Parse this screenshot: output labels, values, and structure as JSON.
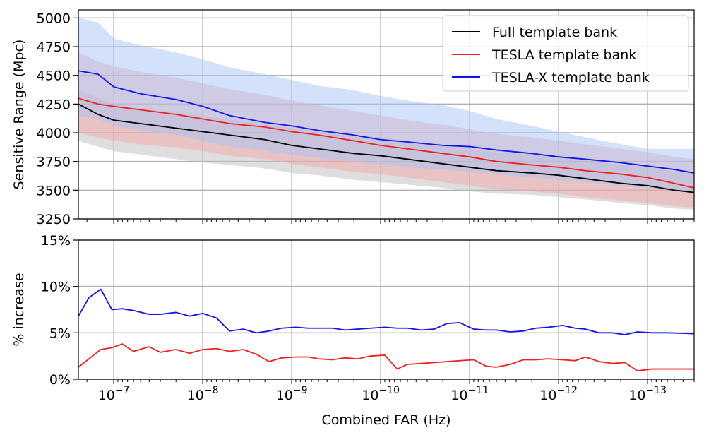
{
  "chart_data": [
    {
      "type": "line",
      "panel": "top",
      "title": "",
      "xlabel": "",
      "ylabel": "Sensitive Range (Mpc)",
      "xscale": "log-reversed",
      "xlim": [
        2.5e-07,
        3e-14
      ],
      "ylim": [
        3250,
        5070
      ],
      "yticks": [
        3250,
        3500,
        3750,
        4000,
        4250,
        4500,
        4750,
        5000
      ],
      "grid": true,
      "legend": "top-right",
      "x": [
        2.5e-07,
        1.5e-07,
        1e-07,
        5e-08,
        2e-08,
        1e-08,
        5e-09,
        2e-09,
        1e-09,
        5e-10,
        2e-10,
        1e-10,
        5e-11,
        2e-11,
        1e-11,
        5e-12,
        2e-12,
        1e-12,
        5e-13,
        2e-13,
        1e-13,
        5e-14,
        3e-14
      ],
      "series": [
        {
          "name": "Full template bank",
          "color": "#000000",
          "values": [
            4250,
            4160,
            4110,
            4080,
            4040,
            4010,
            3980,
            3940,
            3890,
            3860,
            3820,
            3800,
            3770,
            3730,
            3700,
            3670,
            3650,
            3630,
            3600,
            3560,
            3540,
            3500,
            3480
          ],
          "band_low": [
            3930,
            3880,
            3840,
            3810,
            3770,
            3740,
            3720,
            3690,
            3650,
            3630,
            3590,
            3570,
            3550,
            3520,
            3490,
            3470,
            3460,
            3440,
            3420,
            3390,
            3370,
            3340,
            3330
          ],
          "band_high": [
            4380,
            4300,
            4250,
            4210,
            4180,
            4150,
            4120,
            4080,
            4040,
            4010,
            3980,
            3960,
            3930,
            3890,
            3860,
            3830,
            3810,
            3790,
            3760,
            3720,
            3700,
            3660,
            3650
          ],
          "band_color": "#bdbdbd"
        },
        {
          "name": "TESLA template bank",
          "color": "#ee2020",
          "values": [
            4300,
            4250,
            4230,
            4200,
            4160,
            4120,
            4080,
            4050,
            4010,
            3980,
            3930,
            3890,
            3860,
            3820,
            3790,
            3750,
            3720,
            3700,
            3670,
            3640,
            3610,
            3560,
            3520
          ],
          "band_low": [
            4000,
            3960,
            3930,
            3900,
            3870,
            3840,
            3800,
            3770,
            3730,
            3700,
            3660,
            3640,
            3610,
            3570,
            3540,
            3510,
            3490,
            3470,
            3440,
            3410,
            3390,
            3360,
            3350
          ],
          "band_high": [
            4700,
            4620,
            4580,
            4530,
            4480,
            4430,
            4380,
            4330,
            4280,
            4240,
            4190,
            4150,
            4110,
            4070,
            4030,
            3990,
            3960,
            3930,
            3900,
            3860,
            3830,
            3790,
            3770
          ],
          "band_color": "#f3a7a7"
        },
        {
          "name": "TESLA-X template bank",
          "color": "#1414e6",
          "values": [
            4540,
            4510,
            4400,
            4340,
            4290,
            4230,
            4150,
            4090,
            4060,
            4020,
            3980,
            3940,
            3920,
            3890,
            3880,
            3850,
            3820,
            3790,
            3770,
            3740,
            3710,
            3680,
            3650
          ],
          "band_low": [
            4150,
            4120,
            4060,
            4020,
            3980,
            3930,
            3880,
            3840,
            3810,
            3780,
            3750,
            3720,
            3700,
            3680,
            3660,
            3640,
            3610,
            3590,
            3570,
            3540,
            3520,
            3500,
            3490
          ],
          "band_high": [
            5000,
            4960,
            4820,
            4760,
            4700,
            4640,
            4570,
            4510,
            4460,
            4410,
            4370,
            4320,
            4280,
            4240,
            4190,
            4120,
            4060,
            4010,
            3960,
            3900,
            3860,
            3860,
            3860
          ],
          "band_color": "#a8c4f5"
        }
      ]
    },
    {
      "type": "line",
      "panel": "bottom",
      "title": "",
      "xlabel": "Combined FAR (Hz)",
      "ylabel": "% increase",
      "xscale": "log-reversed",
      "xlim": [
        2.5e-07,
        3e-14
      ],
      "ylim": [
        0,
        15
      ],
      "yticks": [
        0,
        5,
        10,
        15
      ],
      "ytick_labels": [
        "0%",
        "5%",
        "10%",
        "15%"
      ],
      "xticks": [
        1e-07,
        1e-08,
        1e-09,
        1e-10,
        1e-11,
        1e-12,
        1e-13
      ],
      "xtick_exponents": [
        "−7",
        "−8",
        "−9",
        "−10",
        "−11",
        "−12",
        "−13"
      ],
      "xtick_base": "10",
      "grid": true,
      "x": [
        2.5e-07,
        1.9e-07,
        1.4e-07,
        1.05e-07,
        8e-08,
        6e-08,
        4e-08,
        3e-08,
        2e-08,
        1.4e-08,
        1e-08,
        7e-09,
        5e-09,
        3.5e-09,
        2.5e-09,
        1.8e-09,
        1.3e-09,
        9e-10,
        6.5e-10,
        5e-10,
        3.5e-10,
        2.5e-10,
        1.8e-10,
        1.3e-10,
        9e-11,
        6.5e-11,
        5e-11,
        3.5e-11,
        2.5e-11,
        1.8e-11,
        1.3e-11,
        9e-12,
        6.5e-12,
        5e-12,
        3.5e-12,
        2.5e-12,
        1.8e-12,
        1.3e-12,
        9e-13,
        6.5e-13,
        5e-13,
        3.5e-13,
        2.5e-13,
        1.8e-13,
        1.3e-13,
        9e-14,
        6e-14,
        4e-14,
        3e-14
      ],
      "series": [
        {
          "name": "TESLA template bank",
          "color": "#ee2020",
          "values": [
            1.3,
            2.2,
            3.2,
            3.4,
            3.8,
            3.0,
            3.5,
            2.9,
            3.2,
            2.8,
            3.2,
            3.3,
            3.0,
            3.2,
            2.7,
            1.9,
            2.3,
            2.4,
            2.4,
            2.2,
            2.1,
            2.3,
            2.2,
            2.5,
            2.6,
            1.1,
            1.6,
            1.7,
            1.8,
            1.9,
            2.0,
            2.1,
            1.4,
            1.3,
            1.6,
            2.1,
            2.1,
            2.2,
            2.1,
            2.0,
            2.4,
            1.9,
            1.7,
            1.8,
            0.9,
            1.1,
            1.1,
            1.1,
            1.1
          ],
          "band_color": "#f3a7a7"
        },
        {
          "name": "TESLA-X template bank",
          "color": "#1414e6",
          "values": [
            6.8,
            8.8,
            9.7,
            7.5,
            7.6,
            7.4,
            7.0,
            7.0,
            7.2,
            6.8,
            7.1,
            6.6,
            5.2,
            5.4,
            5.0,
            5.2,
            5.5,
            5.6,
            5.5,
            5.5,
            5.5,
            5.3,
            5.4,
            5.5,
            5.6,
            5.5,
            5.5,
            5.3,
            5.4,
            6.0,
            6.1,
            5.4,
            5.3,
            5.3,
            5.1,
            5.2,
            5.5,
            5.6,
            5.8,
            5.5,
            5.4,
            5.0,
            5.0,
            4.8,
            5.1,
            5.0,
            5.0,
            4.95,
            4.9
          ],
          "band_color": "#a8c4f5"
        }
      ]
    }
  ]
}
